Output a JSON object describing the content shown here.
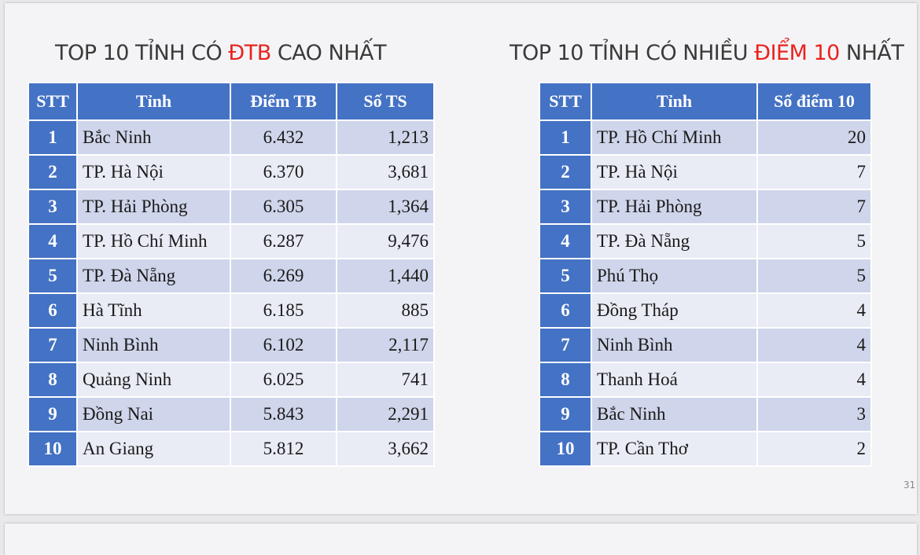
{
  "left": {
    "title_pre": "TOP 10 TỈNH CÓ ",
    "title_hl": "ĐTB",
    "title_post": " CAO NHẤT",
    "headers": [
      "STT",
      "Tỉnh",
      "Điểm TB",
      "Số TS"
    ],
    "rows": [
      [
        "1",
        "Bắc Ninh",
        "6.432",
        "1,213"
      ],
      [
        "2",
        "TP. Hà Nội",
        "6.370",
        "3,681"
      ],
      [
        "3",
        "TP. Hải Phòng",
        "6.305",
        "1,364"
      ],
      [
        "4",
        "TP. Hồ Chí Minh",
        "6.287",
        "9,476"
      ],
      [
        "5",
        "TP. Đà Nẵng",
        "6.269",
        "1,440"
      ],
      [
        "6",
        "Hà Tĩnh",
        "6.185",
        "885"
      ],
      [
        "7",
        "Ninh Bình",
        "6.102",
        "2,117"
      ],
      [
        "8",
        "Quảng Ninh",
        "6.025",
        "741"
      ],
      [
        "9",
        "Đồng Nai",
        "5.843",
        "2,291"
      ],
      [
        "10",
        "An Giang",
        "5.812",
        "3,662"
      ]
    ]
  },
  "right": {
    "title_pre": "TOP 10 TỈNH CÓ NHIỀU ",
    "title_hl": "ĐIỂM 10",
    "title_post": " NHẤT",
    "headers": [
      "STT",
      "Tỉnh",
      "Số điểm 10"
    ],
    "rows": [
      [
        "1",
        "TP. Hồ Chí Minh",
        "20"
      ],
      [
        "2",
        "TP. Hà Nội",
        "7"
      ],
      [
        "3",
        "TP. Hải Phòng",
        "7"
      ],
      [
        "4",
        "TP. Đà Nẵng",
        "5"
      ],
      [
        "5",
        "Phú Thọ",
        "5"
      ],
      [
        "6",
        "Đồng Tháp",
        "4"
      ],
      [
        "7",
        "Ninh Bình",
        "4"
      ],
      [
        "8",
        "Thanh Hoá",
        "4"
      ],
      [
        "9",
        "Bắc Ninh",
        "3"
      ],
      [
        "10",
        "TP. Cần Thơ",
        "2"
      ]
    ]
  },
  "page_number": "31",
  "colors": {
    "header_blue": "#4472c4",
    "row_dark": "#cfd5ea",
    "row_light": "#e9ebf5",
    "highlight_red": "#e8231f"
  }
}
